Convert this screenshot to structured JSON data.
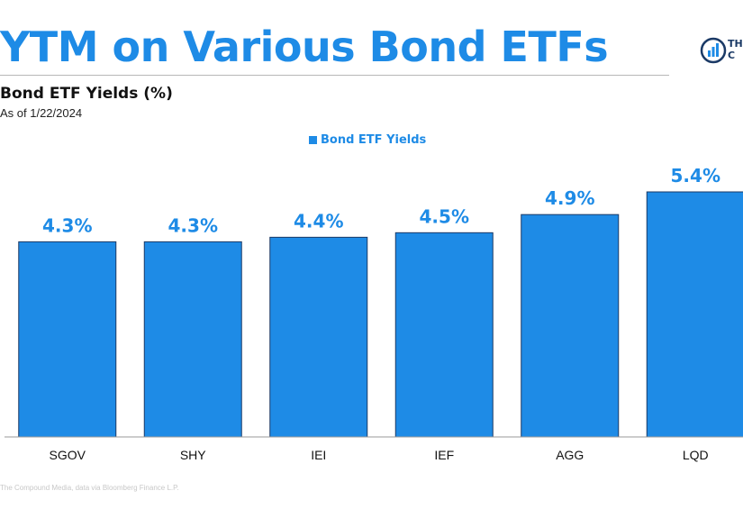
{
  "header": {
    "headline": "YTM on Various Bond ETFs",
    "logo_text": "TH\nC"
  },
  "source_note": "The Compound Media, data via Bloomberg Finance L.P.",
  "chart_data": {
    "type": "bar",
    "title": "Bond ETF Yields (%)",
    "subtitle": "As of 1/22/2024",
    "legend": {
      "label": "Bond ETF Yields",
      "position": "top-center"
    },
    "categories": [
      "SGOV",
      "SHY",
      "IEI",
      "IEF",
      "AGG",
      "LQD"
    ],
    "series": [
      {
        "name": "Bond ETF Yields",
        "values": [
          4.3,
          4.3,
          4.4,
          4.5,
          4.9,
          5.4
        ],
        "labels": [
          "4.3%",
          "4.3%",
          "4.4%",
          "4.5%",
          "4.9%",
          "5.4%"
        ]
      }
    ],
    "ylim": [
      0,
      5.4
    ],
    "grid": false,
    "colors": {
      "bar": "#1e8be6",
      "bar_border": "#1b3a66",
      "axis": "#999999"
    }
  }
}
